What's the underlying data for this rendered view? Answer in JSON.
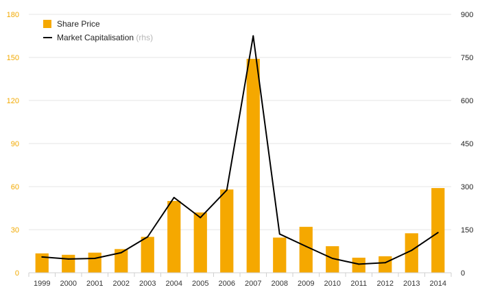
{
  "chart_data": {
    "type": "bar",
    "categories": [
      "1999",
      "2000",
      "2001",
      "2002",
      "2003",
      "2004",
      "2005",
      "2006",
      "2007",
      "2008",
      "2009",
      "2010",
      "2011",
      "2012",
      "2013",
      "2014"
    ],
    "series": [
      {
        "name": "Share Price",
        "type": "bar",
        "axis": "left",
        "color": "#f5a800",
        "values": [
          13.5,
          12.5,
          14,
          16.5,
          25,
          50,
          42,
          58,
          149,
          24.5,
          32,
          18.5,
          10.5,
          11.5,
          27.5,
          59
        ]
      },
      {
        "name": "Market Capitalisation",
        "name_note": "(rhs)",
        "type": "line",
        "axis": "right",
        "color": "#000000",
        "values": [
          55,
          48,
          50,
          70,
          125,
          262,
          192,
          288,
          825,
          135,
          92,
          50,
          30,
          35,
          78,
          140
        ]
      }
    ],
    "y_left": {
      "min": 0,
      "max": 180,
      "ticks": [
        0,
        30,
        60,
        90,
        120,
        150,
        180
      ],
      "color": "#f2a900"
    },
    "y_right": {
      "min": 0,
      "max": 900,
      "ticks": [
        0,
        150,
        300,
        450,
        600,
        750,
        900
      ],
      "color": "#222222"
    },
    "grid": true,
    "legend_position": "top-left"
  }
}
